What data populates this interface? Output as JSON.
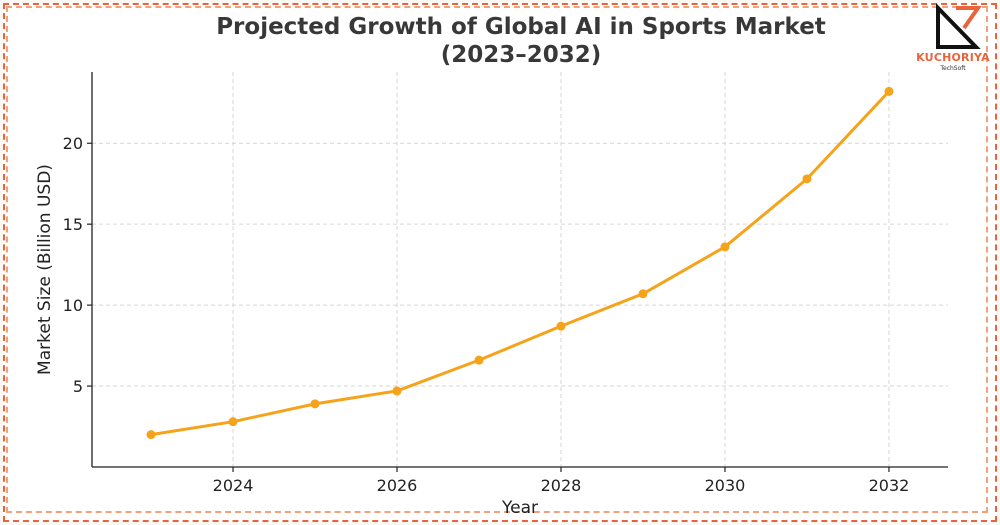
{
  "chart_data": {
    "type": "line",
    "title_line1": "Projected Growth of Global AI in Sports Market",
    "title_line2": "(2023–2032)",
    "xlabel": "Year",
    "ylabel": "Market Size (Billion USD)",
    "x": [
      2023,
      2024,
      2025,
      2026,
      2027,
      2028,
      2029,
      2030,
      2031,
      2032
    ],
    "series": [
      {
        "name": "Market Size",
        "values": [
          2.0,
          2.8,
          3.9,
          4.7,
          6.6,
          8.7,
          10.7,
          13.6,
          17.8,
          23.2
        ]
      }
    ],
    "xlim": [
      2022.28,
      2032.72
    ],
    "ylim": [
      0,
      24.4
    ],
    "xticks": [
      2024,
      2026,
      2028,
      2030,
      2032
    ],
    "yticks": [
      5,
      10,
      15,
      20
    ],
    "grid": true,
    "line_color": "#f5a31a"
  },
  "logo": {
    "brand": "KUCHORIYA",
    "sub": "TechSoft",
    "accent": "#e8643c"
  }
}
